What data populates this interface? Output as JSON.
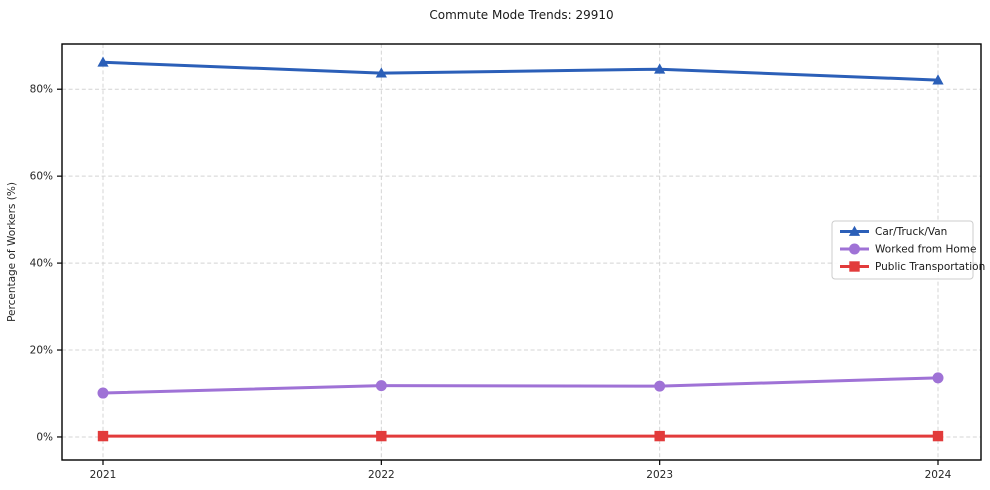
{
  "chart_data": {
    "type": "line",
    "title": "Commute Mode Trends: 29910",
    "xlabel": "",
    "ylabel": "Percentage of Workers (%)",
    "x": [
      "2021",
      "2022",
      "2023",
      "2024"
    ],
    "series": [
      {
        "name": "Car/Truck/Van",
        "marker": "triangle",
        "color": "#2b5fb8",
        "values": [
          86.2,
          83.7,
          84.6,
          82.1
        ]
      },
      {
        "name": "Worked from Home",
        "marker": "circle",
        "color": "#9f72d6",
        "values": [
          10.1,
          11.8,
          11.7,
          13.6
        ]
      },
      {
        "name": "Public Transportation",
        "marker": "square",
        "color": "#e23b3b",
        "values": [
          0.2,
          0.2,
          0.2,
          0.2
        ]
      }
    ],
    "yticks": [
      0,
      20,
      40,
      60,
      80
    ],
    "ytick_labels": [
      "0%",
      "20%",
      "40%",
      "60%",
      "80%"
    ],
    "ylim": [
      -5.3,
      90.4
    ],
    "grid": true,
    "legend_position": "right-middle",
    "legend_entries": [
      "Car/Truck/Van",
      "Worked from Home",
      "Public Transportation"
    ]
  },
  "style_colors": {
    "grid": "#d4d4d4",
    "spine": "#000000",
    "tick_text": "#262626",
    "legend_border": "#cccccc",
    "legend_bg": "#ffffff"
  }
}
